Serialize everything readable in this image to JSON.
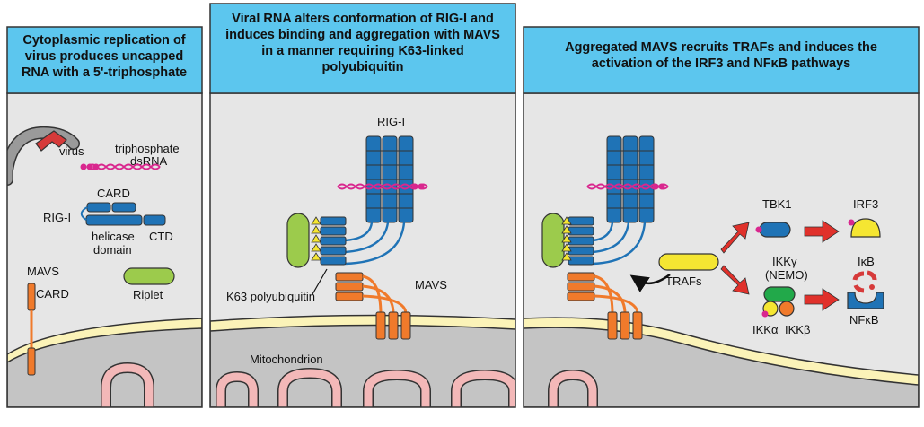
{
  "panels": [
    {
      "header": [
        "Cytoplasmic replication of",
        "virus produces uncapped",
        "RNA with a 5'-triphosphate"
      ],
      "labels": {
        "virus": "virus",
        "triphosphate": "triphosphate",
        "dsrna": "dsRNA",
        "card": "CARD",
        "rig_i": "RIG-I",
        "helicase": "helicase",
        "domain": "domain",
        "ctd": "CTD",
        "riplet": "Riplet",
        "mavs": "MAVS",
        "mavs_card": "CARD"
      }
    },
    {
      "header": [
        "Viral RNA alters conformation of RIG-I and",
        "induces binding and aggregation with MAVS",
        "in a manner requiring K63-linked",
        "polyubiquitin"
      ],
      "labels": {
        "rig_i": "RIG-I",
        "k63": "K63 polyubiquitin",
        "mavs": "MAVS",
        "mitochondrion": "Mitochondrion"
      }
    },
    {
      "header": [
        "Aggregated MAVS recruits TRAFs and induces the",
        "activation of the IRF3 and NFκB pathways"
      ],
      "labels": {
        "tbk1": "TBK1",
        "irf3": "IRF3",
        "ikkg": "IKKγ",
        "nemo": "(NEMO)",
        "ikb": "IκB",
        "trafs": "TRAFs",
        "ikka": "IKKα",
        "ikkb": "IKKβ",
        "nfkb": "NFκB"
      }
    }
  ],
  "colors": {
    "header_bg": "#5cc6ee",
    "cytoplasm": "#e6e6e6",
    "membrane": "#fbf3b8",
    "mito_interior": "#c4c4c4",
    "cristae": "#f3b8b8",
    "rig_i": "#1f73b6",
    "mavs": "#f07a2b",
    "riplet": "#9ccb4c",
    "ubiquitin": "#f5e632",
    "rna": "#d9278e",
    "virus": "#d63a3a",
    "arrow": "#e0312b",
    "ikkg": "#22a94a"
  }
}
